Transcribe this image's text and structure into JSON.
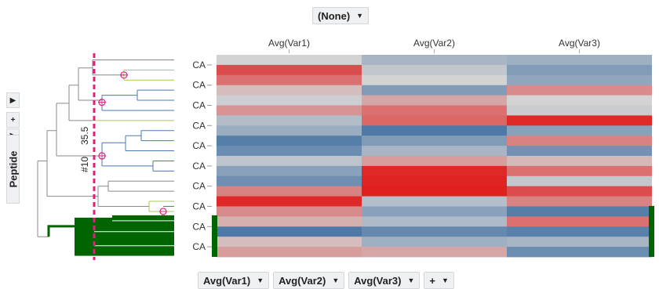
{
  "top_axis": {
    "label": "(None)"
  },
  "left_axis": {
    "expand_label": "+",
    "peptide_label": "Peptide"
  },
  "bottom_axis": {
    "buttons": [
      {
        "label": "Avg(Var1)"
      },
      {
        "label": "Avg(Var2)"
      },
      {
        "label": "Avg(Var3)"
      },
      {
        "label": "+"
      }
    ]
  },
  "dendrogram": {
    "cutoff_label": "#10",
    "cutoff_value": "35.5",
    "colors": {
      "green": "#006400",
      "lime": "#a8c850",
      "blue": "#4a7ab5",
      "gray": "#8a8a8a",
      "cutline": "#e0207a",
      "node": "#e0207a"
    }
  },
  "chart_data": {
    "type": "heatmap",
    "columns": [
      "Avg(Var1)",
      "Avg(Var2)",
      "Avg(Var3)"
    ],
    "row_labels": [
      "CA",
      "CA",
      "CA",
      "CA",
      "CA",
      "CA",
      "CA",
      "CA",
      "CA",
      "CA"
    ],
    "scale": {
      "low": "#3f6fa2",
      "mid": "#d3d3d3",
      "high": "#e01f1f",
      "range": [
        -1,
        1
      ]
    },
    "values": [
      [
        0.0,
        -0.3,
        -0.35
      ],
      [
        0.75,
        -0.12,
        -0.55
      ],
      [
        0.55,
        0.0,
        -0.45
      ],
      [
        0.12,
        -0.55,
        0.4
      ],
      [
        -0.05,
        0.25,
        0.0
      ],
      [
        0.35,
        0.55,
        -0.06
      ],
      [
        -0.22,
        0.6,
        0.95
      ],
      [
        -0.38,
        -0.9,
        -0.5
      ],
      [
        -0.85,
        -0.55,
        0.45
      ],
      [
        -0.7,
        -0.3,
        -0.65
      ],
      [
        -0.15,
        0.3,
        0.15
      ],
      [
        -0.5,
        0.95,
        0.55
      ],
      [
        -0.68,
        0.97,
        -0.12
      ],
      [
        0.45,
        1.0,
        0.75
      ],
      [
        0.95,
        -0.2,
        0.45
      ],
      [
        0.4,
        -0.5,
        -0.85
      ],
      [
        0.2,
        -0.25,
        0.55
      ],
      [
        -0.9,
        -0.75,
        -0.82
      ],
      [
        0.12,
        -0.35,
        -0.3
      ],
      [
        0.3,
        0.25,
        -0.7
      ]
    ]
  }
}
